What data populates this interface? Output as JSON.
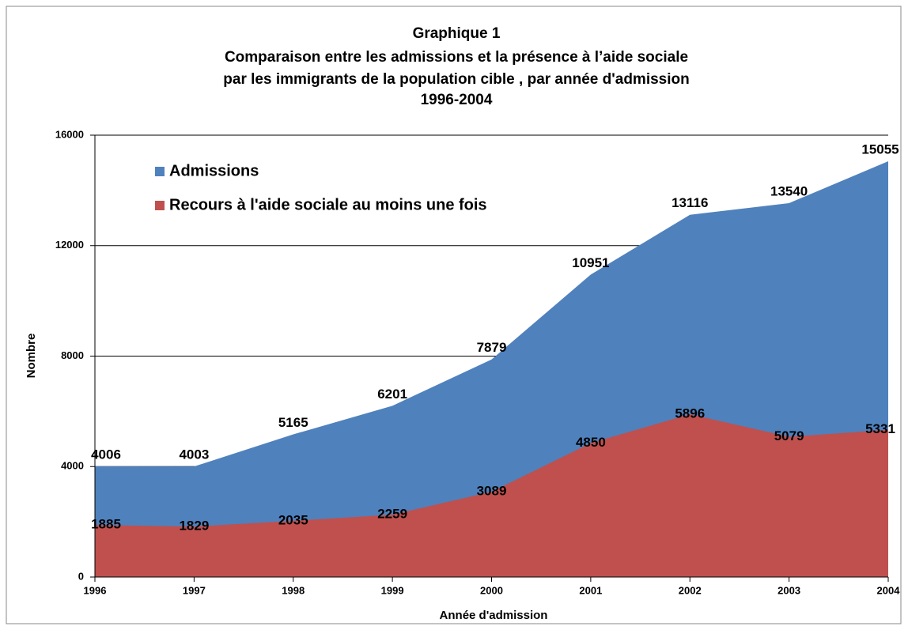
{
  "chart_data": {
    "type": "area",
    "title": [
      "Graphique 1",
      "Comparaison entre les admissions et la présence à l’aide sociale",
      "par les immigrants de la population cible , par année d'admission",
      "1996-2004"
    ],
    "x": [
      1996,
      1997,
      1998,
      1999,
      2000,
      2001,
      2002,
      2003,
      2004
    ],
    "xlim": [
      1996,
      2004
    ],
    "xticks": [
      1996,
      1997,
      1998,
      1999,
      2000,
      2001,
      2002,
      2003,
      2004
    ],
    "ylim": [
      0,
      16000
    ],
    "yticks": [
      0,
      4000,
      8000,
      12000,
      16000
    ],
    "xlabel": "Année d'admission",
    "ylabel": "Nombre",
    "grid": true,
    "legend": "top-left",
    "series": [
      {
        "name": "Admissions",
        "color": "#4f81bd",
        "values": [
          4006,
          4003,
          5165,
          6201,
          7879,
          10951,
          13116,
          13540,
          15055
        ]
      },
      {
        "name": "Recours à l'aide sociale au moins une fois",
        "color": "#c0504d",
        "values": [
          1885,
          1829,
          2035,
          2259,
          3089,
          4850,
          5896,
          5079,
          5331
        ]
      }
    ]
  }
}
